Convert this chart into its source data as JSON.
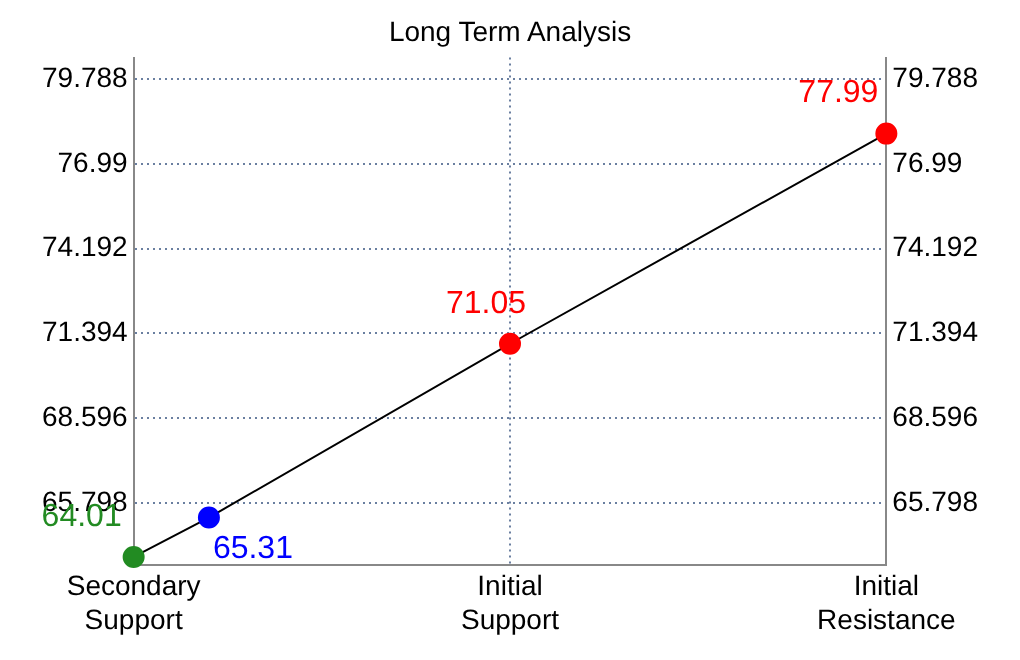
{
  "chart_data": {
    "type": "line",
    "title": "Long Term Analysis",
    "categories": [
      "Secondary Support",
      null,
      null,
      null,
      null,
      "Initial Support",
      null,
      null,
      null,
      null,
      "Initial Resistance"
    ],
    "series": [
      {
        "color": "#000000",
        "colors": [
          "#228b22",
          "#0000ff",
          null,
          null,
          null,
          "#ff0000",
          null,
          null,
          null,
          null,
          "#ff0000"
        ],
        "values": [
          64.01,
          65.31,
          null,
          null,
          null,
          71.05,
          null,
          null,
          null,
          null,
          77.99
        ]
      }
    ],
    "ylim": [
      63.75,
      80.5
    ],
    "yticks": [
      65.798,
      68.596,
      71.394,
      74.192,
      76.99,
      79.788
    ],
    "y2lim": [
      63.75,
      80.5
    ],
    "y2ticks": [
      65.798,
      68.596,
      71.394,
      74.192,
      76.99,
      79.788
    ],
    "grid": true,
    "marker": "circle",
    "line_style": "solid",
    "data_labels": true,
    "legend": false
  }
}
